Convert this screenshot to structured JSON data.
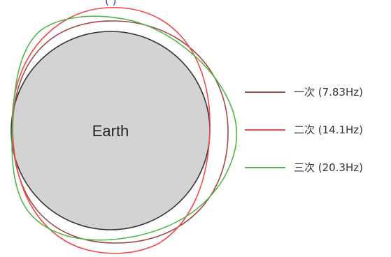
{
  "header": {
    "partial_text": "(              ) "
  },
  "earth": {
    "label": "Earth",
    "fill": "#d3d3d3",
    "stroke": "#333333"
  },
  "modes": [
    {
      "label": "一次 (7.83Hz)",
      "color": "#a04a48"
    },
    {
      "label": "二次 (14.1Hz)",
      "color": "#f04a4a"
    },
    {
      "label": "三次 (20.3Hz)",
      "color": "#4fb648"
    }
  ]
}
